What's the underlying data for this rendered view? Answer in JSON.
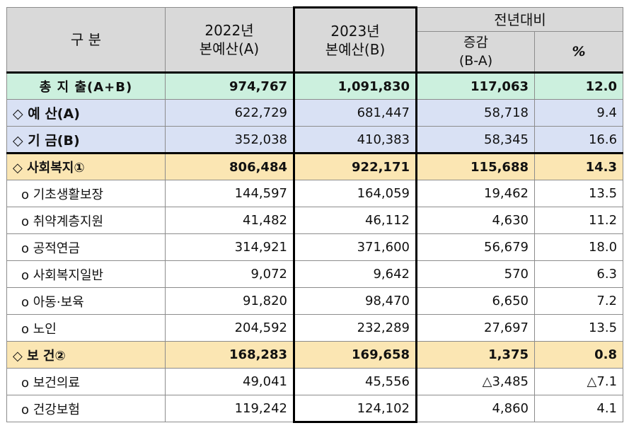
{
  "header": {
    "category": "구 분",
    "col2022_line1": "2022년",
    "col2022_line2": "본예산(A)",
    "col2023_line1": "2023년",
    "col2023_line2": "본예산(B)",
    "comparison": "전년대비",
    "change_line1": "증감",
    "change_line2": "(B-A)",
    "percent": "%"
  },
  "rows": [
    {
      "label": "총 지 출(A+B)",
      "v2022": "974,767",
      "v2023": "1,091,830",
      "change": "117,063",
      "pct": "12.0"
    },
    {
      "label": "◇ 예  산(A)",
      "v2022": "622,729",
      "v2023": "681,447",
      "change": "58,718",
      "pct": "9.4"
    },
    {
      "label": "◇ 기  금(B)",
      "v2022": "352,038",
      "v2023": "410,383",
      "change": "58,345",
      "pct": "16.6"
    },
    {
      "label": "◇ 사회복지①",
      "v2022": "806,484",
      "v2023": "922,171",
      "change": "115,688",
      "pct": "14.3"
    },
    {
      "label": "o 기초생활보장",
      "v2022": "144,597",
      "v2023": "164,059",
      "change": "19,462",
      "pct": "13.5"
    },
    {
      "label": "o 취약계층지원",
      "v2022": "41,482",
      "v2023": "46,112",
      "change": "4,630",
      "pct": "11.2"
    },
    {
      "label": "o 공적연금",
      "v2022": "314,921",
      "v2023": "371,600",
      "change": "56,679",
      "pct": "18.0"
    },
    {
      "label": "o 사회복지일반",
      "v2022": "9,072",
      "v2023": "9,642",
      "change": "570",
      "pct": "6.3"
    },
    {
      "label": "o 아동·보육",
      "v2022": "91,820",
      "v2023": "98,470",
      "change": "6,650",
      "pct": "7.2"
    },
    {
      "label": "o 노인",
      "v2022": "204,592",
      "v2023": "232,289",
      "change": "27,697",
      "pct": "13.5"
    },
    {
      "label": "◇ 보 건②",
      "v2022": "168,283",
      "v2023": "169,658",
      "change": "1,375",
      "pct": "0.8"
    },
    {
      "label": "o 보건의료",
      "v2022": "49,041",
      "v2023": "45,556",
      "change": "△3,485",
      "pct": "△7.1"
    },
    {
      "label": "o 건강보험",
      "v2022": "119,242",
      "v2023": "124,102",
      "change": "4,860",
      "pct": "4.1"
    }
  ],
  "colors": {
    "header": "#d9d9d9",
    "total": "#ccf0de",
    "budget_fund": "#d9e1f4",
    "section": "#fbe6b3"
  }
}
